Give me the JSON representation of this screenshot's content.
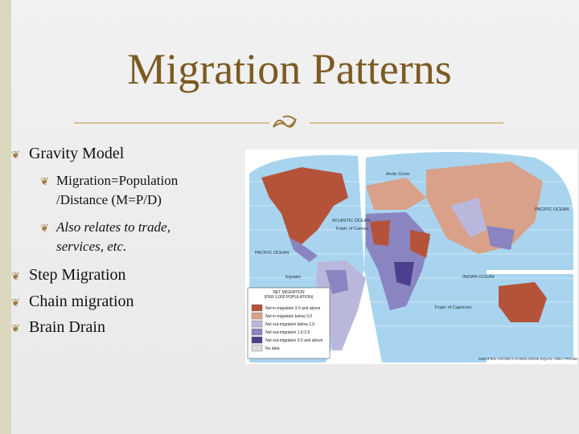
{
  "slide": {
    "title": "Migration Patterns",
    "bullets": [
      {
        "text": "Gravity Model",
        "sub": [
          {
            "lines": [
              "Migration=Population",
              "/Distance (M=P/D)"
            ]
          },
          {
            "lines": [
              "Also relates to trade,",
              "services, etc."
            ],
            "italic": true
          }
        ]
      },
      {
        "text": "Step Migration"
      },
      {
        "text": "Chain migration"
      },
      {
        "text": "Brain Drain"
      }
    ],
    "map": {
      "legend_title": [
        "NET MIGRATION",
        "(PER 1,000 POPULATION)"
      ],
      "legend": [
        {
          "label": "Net in-migration 3.0 and above",
          "color": "#b5533a"
        },
        {
          "label": "Net in-migration below 3.0",
          "color": "#d9a08a"
        },
        {
          "label": "Net out-migration below 1.0",
          "color": "#b9b8dc"
        },
        {
          "label": "Net out-migration 1.0-2.9",
          "color": "#8a84c0"
        },
        {
          "label": "Net out-migration 3.0 and above",
          "color": "#4b3f8e"
        },
        {
          "label": "No data",
          "color": "#dcdcdc"
        }
      ],
      "labels": {
        "arctic": "Arctic Circle",
        "atlantic": "ATLANTIC OCEAN",
        "pacific_w": "PACIFIC OCEAN",
        "pacific_e": "PACIFIC OCEAN",
        "indian": "INDIAN OCEAN",
        "cancer": "Tropic of Cancer",
        "equator": "Equator",
        "capricorn": "Tropic of Capricorn",
        "projection": "MODIFIED GOODE'S HOMOLOSINE EQUAL-AREA PROJECTION"
      }
    }
  }
}
